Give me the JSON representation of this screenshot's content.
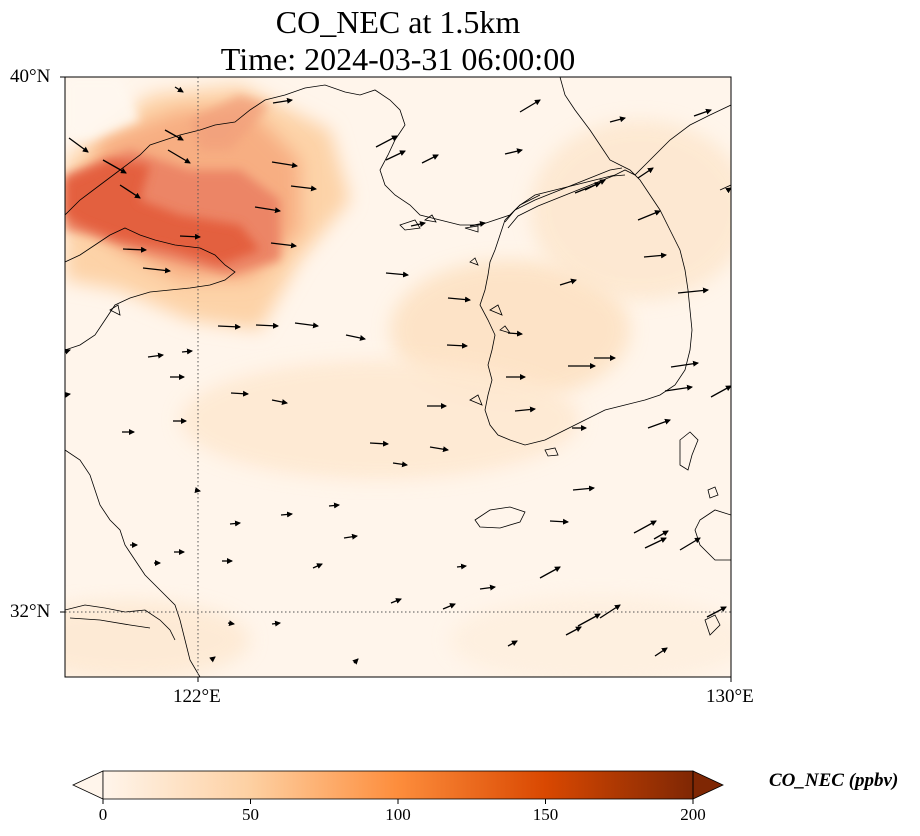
{
  "title": {
    "line1": "CO_NEC at 1.5km",
    "line2": "Time: 2024-03-31 06:00:00"
  },
  "axes": {
    "lat_labels": [
      "40°N",
      "32°N"
    ],
    "lon_labels": [
      "122°E",
      "130°E"
    ],
    "lat_range": [
      31,
      40
    ],
    "lon_range": [
      120,
      130
    ],
    "gridlines": {
      "lat": 32,
      "lon": 122,
      "style": "dotted"
    }
  },
  "colorbar": {
    "label": "CO_NEC (ppbv)",
    "ticks": [
      "0",
      "50",
      "100",
      "150",
      "200"
    ],
    "range": [
      0,
      200
    ],
    "extend": "both",
    "colormap": [
      "#fff5eb",
      "#fdd0a2",
      "#fd8d3c",
      "#d94801",
      "#7f2704"
    ]
  },
  "colors": {
    "background": "#fff5eb",
    "plume_light": "#fdd3a8",
    "plume_mid": "#f4a582",
    "plume_strong": "#e35b3a",
    "coast": "#000000"
  }
}
